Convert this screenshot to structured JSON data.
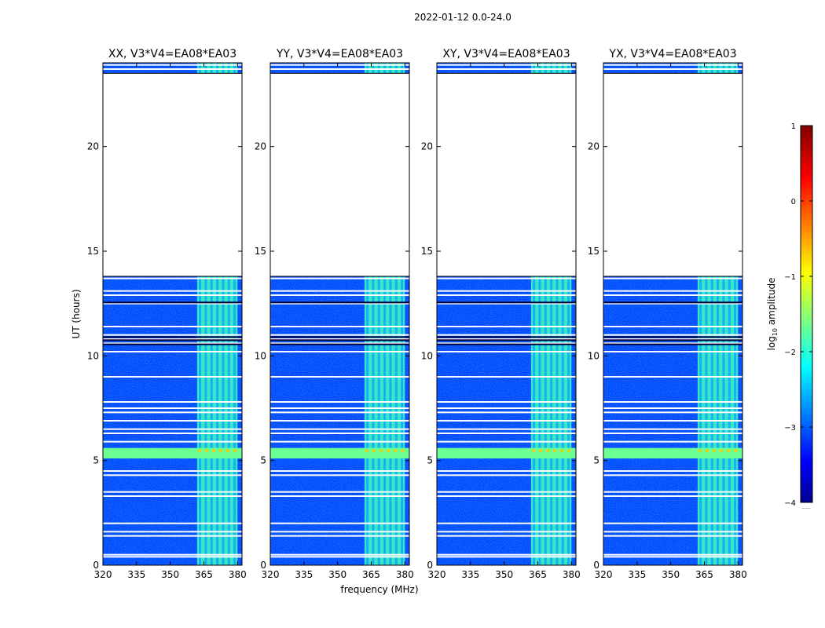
{
  "figure": {
    "suptitle": "2022-01-12 0.0-24.0",
    "xlabel": "frequency (MHz)",
    "ylabel": "UT (hours)",
    "colorbar_label_prefix": "log",
    "colorbar_label_sub": "10",
    "colorbar_label_suffix": " amplitude",
    "colorbar_dots": "......"
  },
  "chart_data": {
    "type": "heatmap",
    "title": "2022-01-12 0.0-24.0",
    "xlabel": "frequency (MHz)",
    "ylabel": "UT (hours)",
    "xlim": [
      320,
      382
    ],
    "ylim": [
      0,
      24
    ],
    "xticks": [
      320,
      335,
      350,
      365,
      380
    ],
    "yticks": [
      0,
      5,
      10,
      15,
      20
    ],
    "colorbar": {
      "label": "log10 amplitude",
      "range": [
        -4,
        1
      ],
      "ticks": [
        1,
        0,
        -1,
        -2,
        -3,
        -4
      ],
      "colormap": "jet"
    },
    "panels": [
      {
        "title": "XX, V3*V4=EA08*EA03",
        "bright_band_mhz": [
          362,
          380
        ]
      },
      {
        "title": "YY, V3*V4=EA08*EA03",
        "bright_band_mhz": [
          362,
          380
        ]
      },
      {
        "title": "XY, V3*V4=EA08*EA03",
        "bright_band_mhz": [
          362,
          380
        ]
      },
      {
        "title": "YX, V3*V4=EA08*EA03",
        "bright_band_mhz": [
          362,
          380
        ]
      }
    ],
    "data_gap_hours": [
      13.8,
      23.5
    ],
    "rfi_band_hours": [
      5.1,
      5.6
    ],
    "typical_background_log10_amplitude": -3.0,
    "bright_band_log10_amplitude": -1.8,
    "rfi_band_log10_amplitude": -1.6,
    "flagged_rows_hours": [
      0.4,
      0.5,
      1.4,
      1.6,
      2.0,
      3.3,
      3.5,
      4.3,
      4.5,
      5.9,
      6.3,
      6.5,
      6.9,
      7.3,
      7.5,
      7.8,
      9.0,
      10.2,
      10.6,
      10.8,
      11.0,
      11.4,
      12.5,
      12.9,
      13.1,
      13.7,
      23.7,
      23.9
    ]
  }
}
